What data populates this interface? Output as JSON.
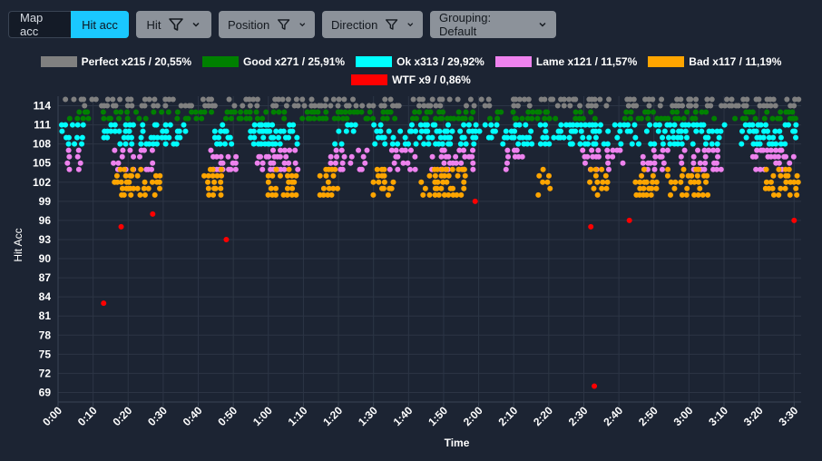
{
  "toolbar": {
    "map_acc": "Map acc",
    "hit_acc": "Hit acc",
    "hit": "Hit",
    "position": "Position",
    "direction": "Direction",
    "grouping": "Grouping: Default"
  },
  "legend": [
    {
      "label": "Perfect x215 / 20,55%",
      "color": "#808080"
    },
    {
      "label": "Good x271 / 25,91%",
      "color": "#008000"
    },
    {
      "label": "Ok x313 / 29,92%",
      "color": "#00ffff"
    },
    {
      "label": "Lame x121 / 11,57%",
      "color": "#ee82ee"
    },
    {
      "label": "Bad x117 / 11,19%",
      "color": "#ffa500"
    },
    {
      "label": "WTF x9 / 0,86%",
      "color": "#ff0000"
    }
  ],
  "chart_data": {
    "type": "scatter",
    "xlabel": "Time",
    "ylabel": "Hit Acc",
    "xlim": [
      0,
      212
    ],
    "ylim": [
      67.5,
      115.5
    ],
    "grid": true,
    "legend_position": "top",
    "x_ticks": [
      "0:00",
      "0:10",
      "0:20",
      "0:30",
      "0:40",
      "0:50",
      "1:00",
      "1:10",
      "1:20",
      "1:30",
      "1:40",
      "1:50",
      "2:00",
      "2:10",
      "2:20",
      "2:30",
      "2:40",
      "2:50",
      "3:00",
      "3:10",
      "3:20",
      "3:30"
    ],
    "y_ticks": [
      "69",
      "72",
      "75",
      "78",
      "81",
      "84",
      "87",
      "90",
      "93",
      "96",
      "99",
      "102",
      "105",
      "108",
      "111",
      "114"
    ],
    "series": [
      {
        "name": "Perfect",
        "color": "#808080",
        "ranges": [
          [
            2,
            10
          ],
          [
            11,
            22
          ],
          [
            24,
            45
          ],
          [
            47,
            58
          ],
          [
            60,
            98
          ],
          [
            100,
            119
          ],
          [
            121,
            135
          ],
          [
            137,
            157
          ],
          [
            162,
            187
          ],
          [
            189,
            211
          ]
        ],
        "y": [
          114,
          115
        ]
      },
      {
        "name": "Good",
        "color": "#008000",
        "ranges": [
          [
            3,
            9
          ],
          [
            12,
            45
          ],
          [
            48,
            65
          ],
          [
            70,
            97
          ],
          [
            101,
            119
          ],
          [
            123,
            128
          ],
          [
            130,
            155
          ],
          [
            162,
            188
          ],
          [
            192,
            211
          ]
        ],
        "y": [
          112,
          113
        ]
      },
      {
        "name": "Ok",
        "color": "#00ffff",
        "ranges": [
          [
            1,
            6
          ],
          [
            7,
            8
          ],
          [
            13,
            22
          ],
          [
            24,
            37
          ],
          [
            44,
            50
          ],
          [
            55,
            62
          ],
          [
            57,
            68
          ],
          [
            79,
            85
          ],
          [
            90,
            98
          ],
          [
            99,
            113
          ],
          [
            115,
            135
          ],
          [
            138,
            149
          ],
          [
            146,
            166
          ],
          [
            168,
            191
          ],
          [
            195,
            211
          ]
        ],
        "y": [
          108,
          109,
          110,
          111
        ]
      },
      {
        "name": "Lame",
        "color": "#ee82ee",
        "ranges": [
          [
            3,
            4
          ],
          [
            6,
            7
          ],
          [
            16,
            28
          ],
          [
            44,
            51
          ],
          [
            57,
            68
          ],
          [
            78,
            88
          ],
          [
            95,
            102
          ],
          [
            107,
            119
          ],
          [
            128,
            133
          ],
          [
            150,
            155
          ],
          [
            157,
            162
          ],
          [
            167,
            174
          ],
          [
            178,
            189
          ],
          [
            198,
            211
          ]
        ],
        "y": [
          104,
          105,
          106,
          107
        ]
      },
      {
        "name": "Bad",
        "color": "#ffa500",
        "ranges": [
          [
            16,
            21
          ],
          [
            18,
            30
          ],
          [
            42,
            47
          ],
          [
            60,
            68
          ],
          [
            75,
            80
          ],
          [
            90,
            96
          ],
          [
            104,
            117
          ],
          [
            137,
            139
          ],
          [
            140,
            141
          ],
          [
            152,
            157
          ],
          [
            165,
            171
          ],
          [
            174,
            186
          ],
          [
            202,
            211
          ]
        ],
        "y": [
          100,
          101,
          102,
          103,
          104
        ]
      },
      {
        "name": "WTF",
        "color": "#ff0000",
        "points": [
          [
            13,
            83
          ],
          [
            18,
            95
          ],
          [
            27,
            97
          ],
          [
            48,
            93
          ],
          [
            119,
            99
          ],
          [
            152,
            95
          ],
          [
            153,
            70
          ],
          [
            163,
            96
          ],
          [
            210,
            96
          ]
        ]
      }
    ]
  }
}
